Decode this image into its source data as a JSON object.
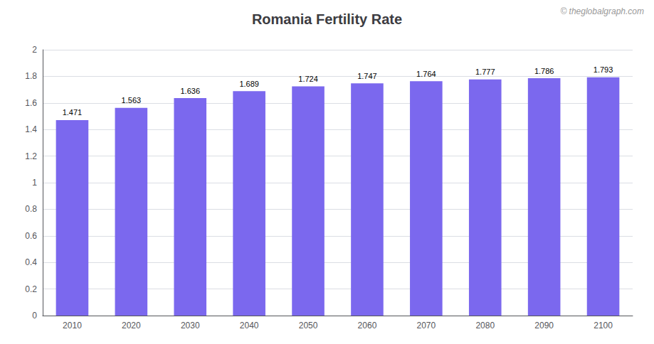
{
  "chart_data": {
    "type": "bar",
    "title": "Romania Fertility Rate",
    "categories": [
      2010,
      2020,
      2030,
      2040,
      2050,
      2060,
      2070,
      2080,
      2090,
      2100
    ],
    "values": [
      1.471,
      1.563,
      1.636,
      1.689,
      1.724,
      1.747,
      1.764,
      1.777,
      1.786,
      1.793
    ],
    "color": "#7B68EE",
    "ylim": [
      0,
      2
    ],
    "yticks": [
      0,
      0.2,
      0.4,
      0.6,
      0.8,
      1,
      1.2,
      1.4,
      1.6,
      1.8,
      2
    ],
    "grid": true,
    "data_labels": true,
    "annotations": [
      "© theglobalgraph.com"
    ]
  }
}
